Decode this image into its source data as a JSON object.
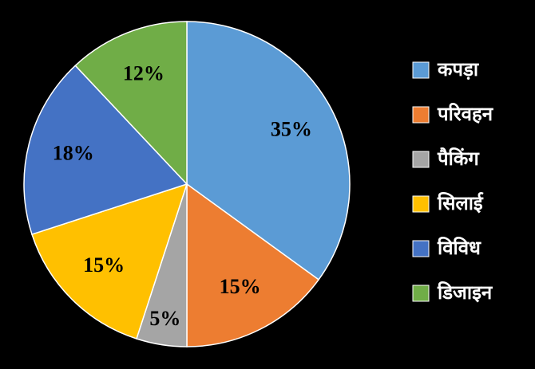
{
  "chart_data": {
    "type": "pie",
    "categories": [
      "कपड़ा",
      "परिवहन",
      "पैकिंग",
      "सिलाई",
      "विविध",
      "डिजाइन"
    ],
    "values": [
      35,
      15,
      5,
      15,
      18,
      12
    ],
    "value_labels": [
      "35%",
      "15%",
      "5%",
      "15%",
      "18%",
      "12%"
    ],
    "colors": [
      "#5b9bd5",
      "#ed7d31",
      "#a5a5a5",
      "#ffc000",
      "#4472c4",
      "#70ad47"
    ]
  }
}
